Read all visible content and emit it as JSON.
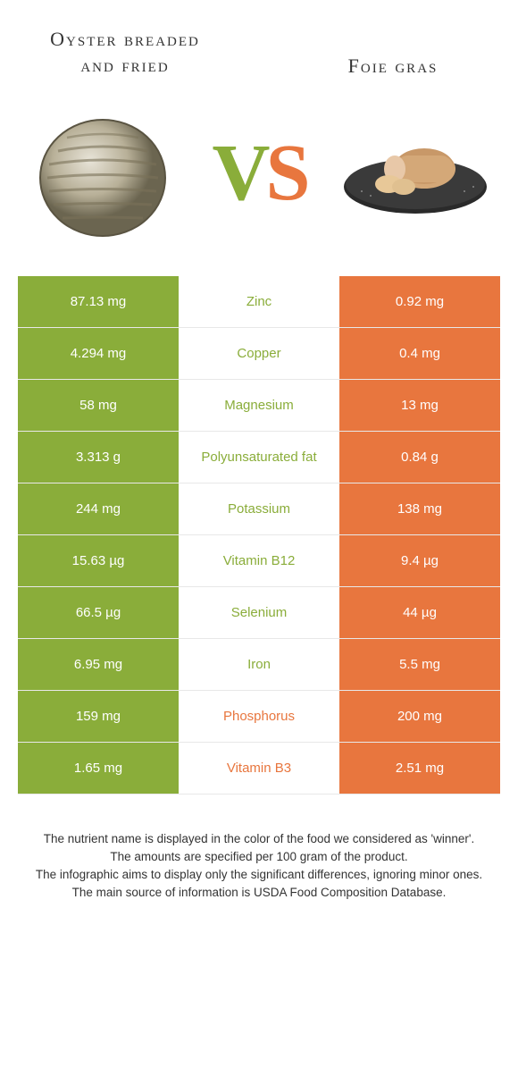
{
  "colors": {
    "left_bg": "#8aad3a",
    "right_bg": "#e8763e",
    "left_text": "#8aad3a",
    "right_text": "#e8763e",
    "row_border": "#e8e8e8"
  },
  "header": {
    "left_title": "Oyster breaded and fried",
    "right_title": "Foie gras",
    "vs_v": "V",
    "vs_s": "S"
  },
  "rows": [
    {
      "left": "87.13 mg",
      "label": "Zinc",
      "right": "0.92 mg",
      "winner": "left"
    },
    {
      "left": "4.294 mg",
      "label": "Copper",
      "right": "0.4 mg",
      "winner": "left"
    },
    {
      "left": "58 mg",
      "label": "Magnesium",
      "right": "13 mg",
      "winner": "left"
    },
    {
      "left": "3.313 g",
      "label": "Polyunsaturated fat",
      "right": "0.84 g",
      "winner": "left"
    },
    {
      "left": "244 mg",
      "label": "Potassium",
      "right": "138 mg",
      "winner": "left"
    },
    {
      "left": "15.63 µg",
      "label": "Vitamin B12",
      "right": "9.4 µg",
      "winner": "left"
    },
    {
      "left": "66.5 µg",
      "label": "Selenium",
      "right": "44 µg",
      "winner": "left"
    },
    {
      "left": "6.95 mg",
      "label": "Iron",
      "right": "5.5 mg",
      "winner": "left"
    },
    {
      "left": "159 mg",
      "label": "Phosphorus",
      "right": "200 mg",
      "winner": "right"
    },
    {
      "left": "1.65 mg",
      "label": "Vitamin B3",
      "right": "2.51 mg",
      "winner": "right"
    }
  ],
  "footer": {
    "line1": "The nutrient name is displayed in the color of the food we considered as 'winner'.",
    "line2": "The amounts are specified per 100 gram of the product.",
    "line3": "The infographic aims to display only the significant differences, ignoring minor ones.",
    "line4": "The main source of information is USDA Food Composition Database."
  }
}
